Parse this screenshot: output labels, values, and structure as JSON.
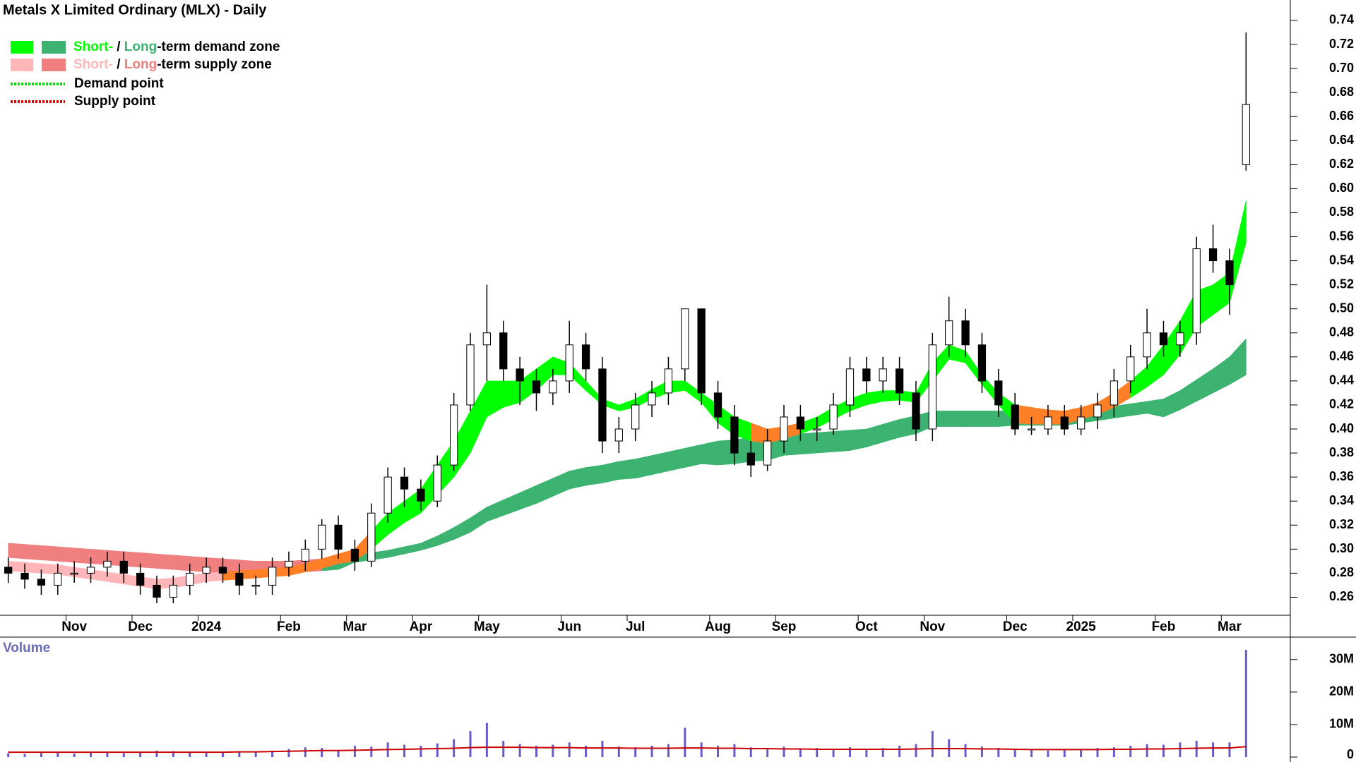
{
  "chart_data": [
    {
      "type": "candlestick",
      "title": "Metals X Limited Ordinary (MLX) - Daily",
      "legend": [
        {
          "short": "Short-",
          "sep": " / ",
          "long": "Long",
          "rest": "-term demand zone"
        },
        {
          "short": "Short-",
          "sep": " / ",
          "long": "Long",
          "rest": "-term supply zone"
        }
      ],
      "point_legend": [
        "Demand point",
        "Supply point"
      ],
      "point_colors": [
        "#00dd00",
        "#dd0000"
      ],
      "demand_colors": [
        "#00ff00",
        "#3cb371"
      ],
      "supply_colors": [
        "#ffb6b9",
        "#f08080"
      ],
      "overlap_color": "#ff7f27",
      "categories": [
        null,
        null,
        null,
        null,
        "Nov",
        null,
        null,
        null,
        "Dec",
        null,
        null,
        null,
        "2024",
        null,
        null,
        null,
        null,
        "Feb",
        null,
        null,
        null,
        "Mar",
        null,
        null,
        null,
        "Apr",
        null,
        null,
        null,
        "May",
        null,
        null,
        null,
        null,
        "Jun",
        null,
        null,
        null,
        "Jul",
        null,
        null,
        null,
        null,
        "Aug",
        null,
        null,
        null,
        "Sep",
        null,
        null,
        null,
        null,
        "Oct",
        null,
        null,
        null,
        "Nov",
        null,
        null,
        null,
        null,
        "Dec",
        null,
        null,
        null,
        "2025",
        null,
        null,
        null,
        null,
        "Feb",
        null,
        null,
        null,
        "Mar",
        null
      ],
      "open": [
        0.285,
        0.28,
        0.275,
        0.27,
        0.28,
        0.28,
        0.285,
        0.29,
        0.28,
        0.27,
        0.26,
        0.27,
        0.28,
        0.285,
        0.28,
        0.27,
        0.27,
        0.285,
        0.29,
        0.3,
        0.32,
        0.3,
        0.29,
        0.33,
        0.36,
        0.35,
        0.34,
        0.37,
        0.42,
        0.47,
        0.48,
        0.45,
        0.44,
        0.43,
        0.44,
        0.47,
        0.45,
        0.39,
        0.4,
        0.42,
        0.43,
        0.45,
        0.5,
        0.43,
        0.41,
        0.38,
        0.37,
        0.39,
        0.41,
        0.4,
        0.4,
        0.42,
        0.45,
        0.44,
        0.45,
        0.43,
        0.4,
        0.47,
        0.49,
        0.47,
        0.44,
        0.42,
        0.4,
        0.4,
        0.41,
        0.4,
        0.41,
        0.42,
        0.44,
        0.46,
        0.48,
        0.47,
        0.48,
        0.55,
        0.54,
        0.62
      ],
      "high": [
        0.293,
        0.288,
        0.283,
        0.288,
        0.29,
        0.293,
        0.298,
        0.298,
        0.288,
        0.278,
        0.278,
        0.288,
        0.293,
        0.293,
        0.288,
        0.278,
        0.293,
        0.298,
        0.308,
        0.325,
        0.328,
        0.308,
        0.338,
        0.368,
        0.368,
        0.358,
        0.378,
        0.43,
        0.48,
        0.52,
        0.49,
        0.46,
        0.45,
        0.45,
        0.49,
        0.48,
        0.46,
        0.41,
        0.43,
        0.44,
        0.46,
        0.5,
        0.5,
        0.44,
        0.42,
        0.39,
        0.4,
        0.42,
        0.42,
        0.41,
        0.43,
        0.46,
        0.46,
        0.46,
        0.46,
        0.44,
        0.48,
        0.51,
        0.5,
        0.48,
        0.45,
        0.43,
        0.41,
        0.42,
        0.42,
        0.42,
        0.43,
        0.45,
        0.47,
        0.5,
        0.49,
        0.49,
        0.56,
        0.57,
        0.55,
        0.73
      ],
      "low": [
        0.272,
        0.267,
        0.262,
        0.262,
        0.272,
        0.272,
        0.277,
        0.272,
        0.262,
        0.255,
        0.255,
        0.262,
        0.272,
        0.272,
        0.262,
        0.262,
        0.262,
        0.277,
        0.282,
        0.292,
        0.292,
        0.282,
        0.285,
        0.322,
        0.335,
        0.332,
        0.335,
        0.365,
        0.415,
        0.44,
        0.44,
        0.42,
        0.415,
        0.42,
        0.43,
        0.44,
        0.38,
        0.38,
        0.39,
        0.41,
        0.42,
        0.44,
        0.42,
        0.4,
        0.37,
        0.36,
        0.365,
        0.38,
        0.39,
        0.39,
        0.395,
        0.41,
        0.43,
        0.43,
        0.42,
        0.39,
        0.39,
        0.46,
        0.46,
        0.43,
        0.41,
        0.395,
        0.395,
        0.395,
        0.395,
        0.395,
        0.4,
        0.41,
        0.43,
        0.45,
        0.46,
        0.46,
        0.47,
        0.53,
        0.495,
        0.615
      ],
      "close": [
        0.28,
        0.275,
        0.27,
        0.28,
        0.28,
        0.285,
        0.29,
        0.28,
        0.27,
        0.26,
        0.27,
        0.28,
        0.285,
        0.28,
        0.27,
        0.27,
        0.285,
        0.29,
        0.3,
        0.32,
        0.3,
        0.29,
        0.33,
        0.36,
        0.35,
        0.34,
        0.37,
        0.42,
        0.47,
        0.48,
        0.45,
        0.44,
        0.43,
        0.44,
        0.47,
        0.45,
        0.39,
        0.4,
        0.42,
        0.43,
        0.45,
        0.5,
        0.43,
        0.41,
        0.38,
        0.37,
        0.39,
        0.41,
        0.4,
        0.4,
        0.42,
        0.45,
        0.44,
        0.45,
        0.43,
        0.4,
        0.47,
        0.49,
        0.47,
        0.44,
        0.42,
        0.4,
        0.4,
        0.41,
        0.4,
        0.41,
        0.42,
        0.44,
        0.46,
        0.48,
        0.47,
        0.48,
        0.55,
        0.54,
        0.52,
        0.67
      ],
      "long_upper": [
        0.305,
        0.304,
        0.303,
        0.302,
        0.301,
        0.3,
        0.299,
        0.298,
        0.297,
        0.296,
        0.295,
        0.294,
        0.293,
        0.292,
        0.291,
        0.29,
        0.29,
        0.29,
        0.291,
        0.292,
        0.293,
        0.295,
        0.297,
        0.299,
        0.302,
        0.305,
        0.311,
        0.318,
        0.326,
        0.335,
        0.341,
        0.347,
        0.353,
        0.359,
        0.365,
        0.368,
        0.37,
        0.373,
        0.375,
        0.378,
        0.381,
        0.384,
        0.387,
        0.39,
        0.391,
        0.393,
        0.394,
        0.395,
        0.396,
        0.397,
        0.398,
        0.399,
        0.4,
        0.404,
        0.408,
        0.411,
        0.415,
        0.415,
        0.415,
        0.415,
        0.415,
        0.415,
        0.415,
        0.415,
        0.415,
        0.415,
        0.417,
        0.419,
        0.421,
        0.423,
        0.425,
        0.432,
        0.441,
        0.45,
        0.46,
        0.475
      ],
      "long_lower": [
        0.293,
        0.292,
        0.291,
        0.29,
        0.289,
        0.288,
        0.287,
        0.286,
        0.285,
        0.284,
        0.283,
        0.282,
        0.281,
        0.28,
        0.279,
        0.278,
        0.278,
        0.28,
        0.281,
        0.282,
        0.283,
        0.289,
        0.291,
        0.293,
        0.296,
        0.299,
        0.303,
        0.308,
        0.314,
        0.323,
        0.328,
        0.333,
        0.338,
        0.344,
        0.35,
        0.353,
        0.355,
        0.358,
        0.359,
        0.362,
        0.365,
        0.368,
        0.371,
        0.37,
        0.371,
        0.373,
        0.374,
        0.378,
        0.379,
        0.38,
        0.381,
        0.382,
        0.385,
        0.389,
        0.393,
        0.396,
        0.402,
        0.402,
        0.402,
        0.402,
        0.402,
        0.403,
        0.403,
        0.403,
        0.403,
        0.405,
        0.407,
        0.409,
        0.411,
        0.413,
        0.41,
        0.416,
        0.423,
        0.43,
        0.437,
        0.445
      ],
      "short_upper": [
        0.29,
        0.289,
        0.288,
        0.287,
        0.285,
        0.283,
        0.281,
        0.279,
        0.277,
        0.275,
        0.276,
        0.278,
        0.28,
        0.281,
        0.282,
        0.283,
        0.284,
        0.285,
        0.288,
        0.292,
        0.296,
        0.3,
        0.315,
        0.33,
        0.34,
        0.35,
        0.37,
        0.39,
        0.415,
        0.44,
        0.44,
        0.44,
        0.45,
        0.46,
        0.455,
        0.44,
        0.425,
        0.42,
        0.425,
        0.433,
        0.44,
        0.44,
        0.43,
        0.42,
        0.41,
        0.405,
        0.4,
        0.402,
        0.405,
        0.41,
        0.418,
        0.425,
        0.43,
        0.432,
        0.432,
        0.43,
        0.455,
        0.47,
        0.465,
        0.445,
        0.43,
        0.42,
        0.418,
        0.416,
        0.415,
        0.418,
        0.422,
        0.43,
        0.44,
        0.452,
        0.47,
        0.49,
        0.515,
        0.52,
        0.53,
        0.59
      ],
      "short_lower": [
        0.282,
        0.281,
        0.28,
        0.279,
        0.277,
        0.275,
        0.273,
        0.271,
        0.269,
        0.267,
        0.268,
        0.27,
        0.273,
        0.274,
        0.275,
        0.276,
        0.277,
        0.278,
        0.281,
        0.284,
        0.288,
        0.29,
        0.3,
        0.312,
        0.322,
        0.33,
        0.345,
        0.36,
        0.38,
        0.41,
        0.418,
        0.422,
        0.432,
        0.445,
        0.445,
        0.432,
        0.42,
        0.415,
        0.418,
        0.425,
        0.43,
        0.432,
        0.422,
        0.405,
        0.395,
        0.39,
        0.388,
        0.392,
        0.396,
        0.401,
        0.408,
        0.415,
        0.42,
        0.423,
        0.424,
        0.422,
        0.44,
        0.458,
        0.455,
        0.437,
        0.42,
        0.405,
        0.404,
        0.404,
        0.404,
        0.408,
        0.412,
        0.418,
        0.426,
        0.435,
        0.445,
        0.462,
        0.485,
        0.495,
        0.505,
        0.555
      ],
      "ylim": [
        0.245,
        0.757
      ],
      "yticks": [
        0.26,
        0.28,
        {
          "value": 0.3,
          "label": "0.30"
        },
        0.32,
        0.34,
        0.36,
        0.38,
        {
          "value": 0.4,
          "label": "0.40"
        },
        0.42,
        0.44,
        0.46,
        0.48,
        {
          "value": 0.5,
          "label": "0.50"
        },
        0.52,
        0.54,
        0.56,
        0.58,
        {
          "value": 0.6,
          "label": "0.60"
        },
        0.62,
        0.64,
        0.66,
        0.68,
        {
          "value": 0.7,
          "label": "0.70"
        },
        0.72,
        0.74
      ]
    },
    {
      "type": "bar",
      "title": "Volume",
      "color": "#6a5acd",
      "values": [
        1.2,
        1.0,
        1.5,
        1.3,
        1.1,
        1.4,
        1.6,
        1.2,
        1.5,
        2.0,
        1.8,
        1.3,
        1.6,
        1.4,
        1.7,
        1.5,
        2.0,
        2.5,
        3.0,
        2.8,
        2.2,
        3.5,
        3.2,
        4.5,
        3.8,
        3.5,
        4.2,
        5.5,
        8.0,
        10.5,
        5.0,
        4.0,
        3.5,
        3.8,
        4.5,
        3.5,
        5.0,
        3.2,
        3.0,
        3.5,
        4.0,
        9.0,
        4.5,
        3.5,
        4.0,
        3.0,
        2.8,
        3.2,
        2.5,
        2.8,
        2.2,
        3.0,
        2.5,
        2.8,
        3.5,
        4.0,
        8.0,
        5.5,
        4.0,
        3.2,
        2.8,
        2.5,
        2.2,
        2.0,
        2.3,
        2.5,
        2.8,
        3.0,
        3.5,
        4.0,
        3.8,
        4.5,
        5.0,
        4.5,
        4.5,
        33.0
      ],
      "average": [
        1.5,
        1.5,
        1.5,
        1.5,
        1.5,
        1.5,
        1.5,
        1.5,
        1.5,
        1.5,
        1.5,
        1.5,
        1.5,
        1.5,
        1.6,
        1.6,
        1.7,
        1.8,
        1.9,
        2.0,
        2.0,
        2.1,
        2.2,
        2.3,
        2.4,
        2.5,
        2.6,
        2.7,
        2.9,
        3.0,
        3.0,
        3.0,
        2.9,
        2.9,
        2.9,
        2.8,
        2.8,
        2.8,
        2.7,
        2.7,
        2.7,
        2.8,
        2.8,
        2.7,
        2.7,
        2.6,
        2.6,
        2.5,
        2.5,
        2.4,
        2.4,
        2.4,
        2.4,
        2.4,
        2.4,
        2.5,
        2.6,
        2.6,
        2.6,
        2.5,
        2.5,
        2.4,
        2.3,
        2.3,
        2.3,
        2.3,
        2.3,
        2.4,
        2.4,
        2.5,
        2.5,
        2.6,
        2.7,
        2.8,
        2.8,
        3.2
      ],
      "average_color": "#cc0000",
      "ylim": [
        0,
        36.9
      ],
      "yticks": [
        0,
        {
          "value": 10,
          "label": "10M"
        },
        {
          "value": 20,
          "label": "20M"
        },
        {
          "value": 30,
          "label": "30M"
        }
      ]
    }
  ]
}
